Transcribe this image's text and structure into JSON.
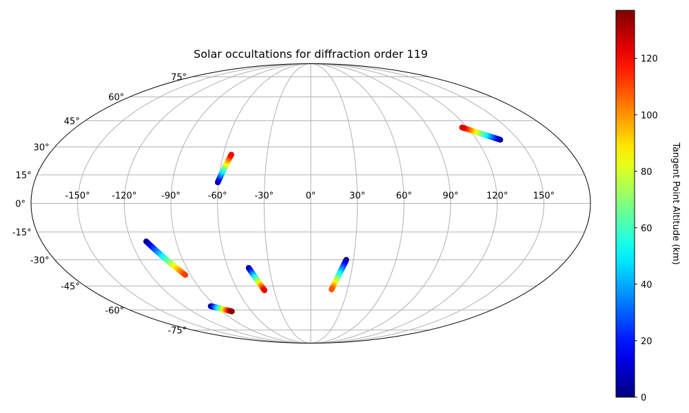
{
  "chart_data": {
    "type": "scatter",
    "projection": "mollweide",
    "title": "Solar occultations for diffraction order 119",
    "grid": true,
    "longitude_ticks": [
      -150,
      -120,
      -90,
      -60,
      -30,
      0,
      30,
      60,
      90,
      120,
      150
    ],
    "longitude_tick_labels": [
      "-150°",
      "-120°",
      "-90°",
      "-60°",
      "-30°",
      "0°",
      "30°",
      "60°",
      "90°",
      "120°",
      "150°"
    ],
    "latitude_ticks": [
      -75,
      -60,
      -45,
      -30,
      -15,
      0,
      15,
      30,
      45,
      60,
      75
    ],
    "latitude_tick_labels": [
      "-75°",
      "-60°",
      "-45°",
      "-30°",
      "-15°",
      "0°",
      "15°",
      "30°",
      "45°",
      "60°",
      "75°"
    ],
    "colorbar": {
      "label": "Tangent Point Altitude (km)",
      "colormap": "jet",
      "range": [
        0,
        137
      ],
      "ticks": [
        0,
        20,
        40,
        60,
        80,
        100,
        120
      ],
      "tick_labels": [
        "0",
        "20",
        "40",
        "60",
        "80",
        "100",
        "120"
      ]
    },
    "series": [
      {
        "lon_start": -60.5,
        "lat_start": 11.0,
        "lon_end": -54.5,
        "lat_end": 25.8,
        "alt_start": 0,
        "alt_end": 120
      },
      {
        "lon_start": 137.0,
        "lat_start": 34.0,
        "lon_end": 116.0,
        "lat_end": 41.0,
        "alt_start": 0,
        "alt_end": 125
      },
      {
        "lon_start": -110.0,
        "lat_start": -20.0,
        "lon_end": -94.0,
        "lat_end": -38.5,
        "alt_start": 0,
        "alt_end": 112
      },
      {
        "lon_start": -45.0,
        "lat_start": -34.5,
        "lon_end": -38.0,
        "lat_end": -47.5,
        "alt_start": 0,
        "alt_end": 122
      },
      {
        "lon_start": 25.0,
        "lat_start": -30.0,
        "lon_end": 17.0,
        "lat_end": -47.0,
        "alt_start": 0,
        "alt_end": 108
      },
      {
        "lon_start": -95.0,
        "lat_start": -57.5,
        "lon_end": -80.0,
        "lat_end": -61.0,
        "alt_start": 0,
        "alt_end": 137
      }
    ]
  }
}
